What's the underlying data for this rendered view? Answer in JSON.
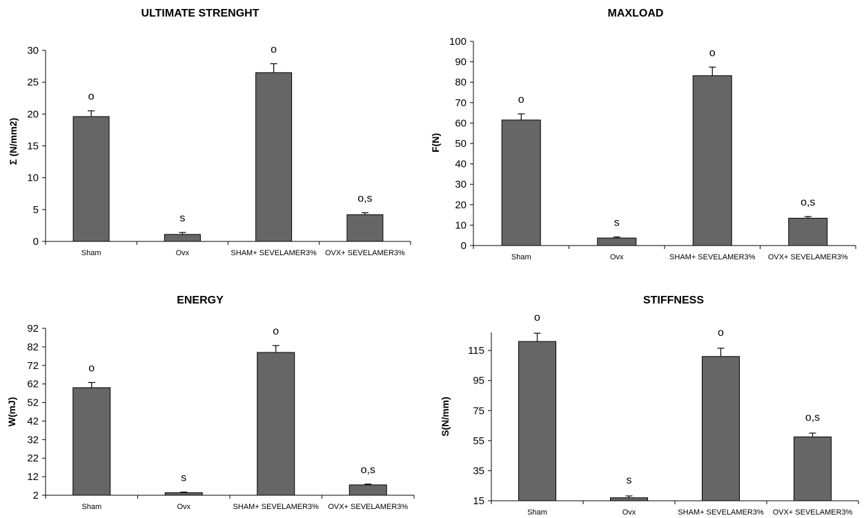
{
  "colors": {
    "bar": "#666666",
    "bar_edge": "#000000",
    "axis": "#000000"
  },
  "chart_data": [
    {
      "type": "bar",
      "title": "ULTIMATE STRENGHT",
      "ylabel": "Σ  (N/mm2)",
      "xlabel": "",
      "categories": [
        "Sham",
        "Ovx",
        "SHAM+ SEVELAMER3%",
        "OVX+ SEVELAMER3%"
      ],
      "values": [
        19.6,
        1.1,
        26.5,
        4.2
      ],
      "errors": [
        0.9,
        0.3,
        1.4,
        0.3
      ],
      "annotations": [
        "o",
        "s",
        "o",
        "o,s"
      ],
      "ylim": [
        0,
        30
      ],
      "yticks": [
        "0",
        "5",
        "10",
        "15",
        "20",
        "25",
        "30"
      ],
      "grid": false
    },
    {
      "type": "bar",
      "title": "MAXLOAD",
      "ylabel": "F(N)",
      "xlabel": "",
      "categories": [
        "Sham",
        "Ovx",
        "SHAM+ SEVELAMER3%",
        "OVX+ SEVELAMER3%"
      ],
      "values": [
        61.5,
        3.7,
        83.2,
        13.4
      ],
      "errors": [
        3.0,
        0.5,
        4.2,
        0.8
      ],
      "annotations": [
        "o",
        "s",
        "o",
        "o,s"
      ],
      "ylim": [
        0,
        100
      ],
      "yticks": [
        "0",
        "10",
        "20",
        "30",
        "40",
        "50",
        "60",
        "70",
        "80",
        "90",
        "100"
      ],
      "grid": false
    },
    {
      "type": "bar",
      "title": "ENERGY",
      "ylabel": "W(mJ)",
      "xlabel": "",
      "categories": [
        "Sham",
        "Ovx",
        "SHAM+ SEVELAMER3%",
        "OVX+ SEVELAMER3%"
      ],
      "values": [
        60,
        3.4,
        79,
        7.6
      ],
      "errors": [
        2.8,
        0.3,
        3.7,
        0.4
      ],
      "annotations": [
        "o",
        "s",
        "o",
        "o,s"
      ],
      "ylim": [
        2,
        92
      ],
      "yticks": [
        "2",
        "12",
        "22",
        "32",
        "42",
        "52",
        "62",
        "72",
        "82",
        "92"
      ],
      "grid": false
    },
    {
      "type": "bar",
      "title": "STIFFNESS",
      "ylabel": "S(N/mm)",
      "xlabel": "",
      "categories": [
        "Sham",
        "Ovx",
        "SHAM+ SEVELAMER3%",
        "OVX+ SEVELAMER3%"
      ],
      "values": [
        121,
        17,
        111,
        57.5
      ],
      "errors": [
        5.5,
        1.2,
        5.5,
        2.5
      ],
      "annotations": [
        "o",
        "s",
        "o",
        "o,s"
      ],
      "ylim": [
        15,
        127
      ],
      "yticks": [
        "15",
        "35",
        "55",
        "75",
        "95",
        "115"
      ],
      "grid": false
    }
  ]
}
